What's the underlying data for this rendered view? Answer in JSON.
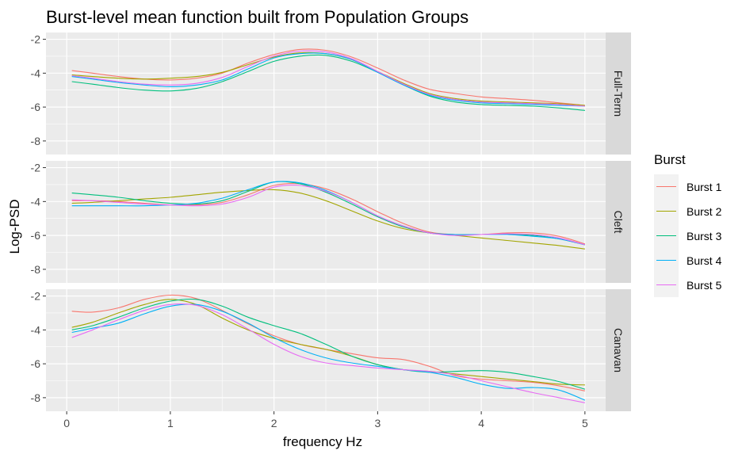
{
  "chart_data": {
    "type": "line",
    "title": "Burst-level mean function built from Population Groups",
    "xlabel": "frequency Hz",
    "ylabel": "Log-PSD",
    "xlim": [
      -0.2,
      5.2
    ],
    "ylim": [
      -8.8,
      -1.6
    ],
    "x_ticks": [
      0,
      1,
      2,
      3,
      4,
      5
    ],
    "y_ticks": [
      -2,
      -4,
      -6,
      -8
    ],
    "legend": {
      "title": "Burst",
      "position": "right",
      "entries": [
        "Burst 1",
        "Burst 2",
        "Burst 3",
        "Burst 4",
        "Burst 5"
      ]
    },
    "series_colors": [
      "#F8766D",
      "#A3A500",
      "#00BF7D",
      "#00B0F6",
      "#E76BF3"
    ],
    "x": [
      0.05,
      0.25,
      0.5,
      0.75,
      1.0,
      1.25,
      1.5,
      1.75,
      2.0,
      2.25,
      2.5,
      2.75,
      3.0,
      3.25,
      3.5,
      3.75,
      4.0,
      4.25,
      4.5,
      4.75,
      5.0
    ],
    "panels": [
      {
        "name": "Full-Term",
        "series": [
          {
            "name": "Burst 1",
            "values": [
              -3.85,
              -4.0,
              -4.2,
              -4.35,
              -4.4,
              -4.3,
              -4.0,
              -3.4,
              -2.9,
              -2.6,
              -2.65,
              -3.05,
              -3.7,
              -4.4,
              -4.95,
              -5.2,
              -5.4,
              -5.5,
              -5.6,
              -5.75,
              -5.9
            ]
          },
          {
            "name": "Burst 2",
            "values": [
              -4.1,
              -4.2,
              -4.3,
              -4.35,
              -4.3,
              -4.2,
              -3.95,
              -3.5,
              -3.05,
              -2.8,
              -2.85,
              -3.2,
              -3.9,
              -4.6,
              -5.2,
              -5.5,
              -5.65,
              -5.7,
              -5.75,
              -5.8,
              -5.9
            ]
          },
          {
            "name": "Burst 3",
            "values": [
              -4.5,
              -4.65,
              -4.85,
              -5.0,
              -5.05,
              -4.9,
              -4.5,
              -3.9,
              -3.3,
              -3.0,
              -2.95,
              -3.3,
              -3.95,
              -4.7,
              -5.35,
              -5.7,
              -5.85,
              -5.9,
              -5.95,
              -6.05,
              -6.2
            ]
          },
          {
            "name": "Burst 4",
            "values": [
              -4.2,
              -4.35,
              -4.55,
              -4.7,
              -4.8,
              -4.7,
              -4.4,
              -3.75,
              -3.1,
              -2.85,
              -2.85,
              -3.2,
              -3.95,
              -4.7,
              -5.3,
              -5.6,
              -5.75,
              -5.8,
              -5.85,
              -5.9,
              -5.95
            ]
          },
          {
            "name": "Burst 5",
            "values": [
              -4.15,
              -4.3,
              -4.5,
              -4.65,
              -4.7,
              -4.6,
              -4.25,
              -3.6,
              -3.0,
              -2.7,
              -2.75,
              -3.15,
              -3.9,
              -4.65,
              -5.25,
              -5.55,
              -5.7,
              -5.75,
              -5.8,
              -5.85,
              -5.95
            ]
          }
        ]
      },
      {
        "name": "Cleft",
        "series": [
          {
            "name": "Burst 1",
            "values": [
              -3.95,
              -3.95,
              -4.0,
              -4.1,
              -4.2,
              -4.2,
              -4.05,
              -3.6,
              -3.05,
              -2.95,
              -3.25,
              -3.85,
              -4.6,
              -5.3,
              -5.8,
              -5.95,
              -5.95,
              -5.85,
              -5.85,
              -6.05,
              -6.5
            ]
          },
          {
            "name": "Burst 2",
            "values": [
              -4.1,
              -4.05,
              -3.95,
              -3.85,
              -3.75,
              -3.6,
              -3.45,
              -3.35,
              -3.3,
              -3.5,
              -3.95,
              -4.55,
              -5.15,
              -5.6,
              -5.85,
              -6.0,
              -6.15,
              -6.3,
              -6.45,
              -6.6,
              -6.8
            ]
          },
          {
            "name": "Burst 3",
            "values": [
              -3.5,
              -3.6,
              -3.75,
              -3.95,
              -4.1,
              -4.15,
              -3.95,
              -3.4,
              -2.85,
              -2.95,
              -3.45,
              -4.15,
              -4.9,
              -5.5,
              -5.85,
              -5.95,
              -5.95,
              -5.95,
              -6.0,
              -6.2,
              -6.55
            ]
          },
          {
            "name": "Burst 4",
            "values": [
              -4.25,
              -4.25,
              -4.25,
              -4.25,
              -4.2,
              -4.1,
              -3.8,
              -3.3,
              -2.85,
              -2.9,
              -3.35,
              -4.05,
              -4.85,
              -5.45,
              -5.85,
              -5.95,
              -5.95,
              -5.95,
              -6.05,
              -6.2,
              -6.55
            ]
          },
          {
            "name": "Burst 5",
            "values": [
              -3.9,
              -3.95,
              -4.05,
              -4.15,
              -4.2,
              -4.25,
              -4.15,
              -3.75,
              -3.15,
              -3.05,
              -3.4,
              -4.05,
              -4.85,
              -5.45,
              -5.85,
              -6.0,
              -5.95,
              -5.9,
              -5.95,
              -6.15,
              -6.55
            ]
          }
        ]
      },
      {
        "name": "Canavan",
        "series": [
          {
            "name": "Burst 1",
            "values": [
              -2.9,
              -2.95,
              -2.7,
              -2.2,
              -1.95,
              -2.15,
              -2.85,
              -3.65,
              -4.35,
              -4.85,
              -5.15,
              -5.4,
              -5.65,
              -5.75,
              -6.15,
              -6.7,
              -6.9,
              -7.0,
              -7.1,
              -7.3,
              -7.6
            ]
          },
          {
            "name": "Burst 2",
            "values": [
              -3.85,
              -3.55,
              -3.0,
              -2.5,
              -2.2,
              -2.5,
              -3.3,
              -4.0,
              -4.5,
              -4.85,
              -5.15,
              -5.55,
              -6.05,
              -6.35,
              -6.45,
              -6.6,
              -6.75,
              -6.9,
              -7.05,
              -7.2,
              -7.25
            ]
          },
          {
            "name": "Burst 3",
            "values": [
              -4.0,
              -3.75,
              -3.25,
              -2.7,
              -2.3,
              -2.2,
              -2.6,
              -3.25,
              -3.75,
              -4.2,
              -4.85,
              -5.55,
              -6.05,
              -6.35,
              -6.5,
              -6.45,
              -6.4,
              -6.5,
              -6.75,
              -7.05,
              -7.5
            ]
          },
          {
            "name": "Burst 4",
            "values": [
              -4.15,
              -3.9,
              -3.6,
              -3.05,
              -2.6,
              -2.5,
              -2.9,
              -3.6,
              -4.45,
              -5.15,
              -5.65,
              -5.95,
              -6.15,
              -6.35,
              -6.5,
              -6.8,
              -7.2,
              -7.45,
              -7.4,
              -7.55,
              -8.15
            ]
          },
          {
            "name": "Burst 5",
            "values": [
              -4.45,
              -4.0,
              -3.4,
              -2.85,
              -2.5,
              -2.55,
              -3.1,
              -3.95,
              -4.85,
              -5.55,
              -5.95,
              -6.1,
              -6.25,
              -6.35,
              -6.45,
              -6.65,
              -7.0,
              -7.35,
              -7.7,
              -8.0,
              -8.3
            ]
          }
        ]
      }
    ]
  }
}
